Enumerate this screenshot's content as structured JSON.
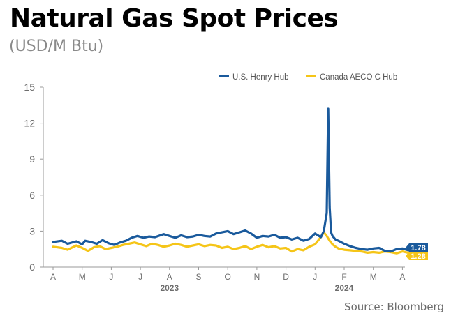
{
  "title": "Natural Gas Spot Prices",
  "subtitle": "(USD/M Btu)",
  "source": "Source: Bloomberg",
  "colors": {
    "henry_hub": "#1a5a9c",
    "aeco": "#f5c518",
    "axis": "#9a9a9a",
    "tick_text": "#6d6d6d"
  },
  "chart_data": {
    "type": "line",
    "title": "Natural Gas Spot Prices",
    "subtitle": "(USD/M Btu)",
    "ylim": [
      0,
      15
    ],
    "yticks": [
      "0",
      "3",
      "6",
      "9",
      "12",
      "15"
    ],
    "grid": false,
    "legend_position": "top-right",
    "x_month_labels": [
      "A",
      "M",
      "J",
      "J",
      "A",
      "S",
      "O",
      "N",
      "D",
      "J",
      "F",
      "M",
      "A"
    ],
    "x_year_labels": [
      {
        "label": "2023",
        "month_index": 4
      },
      {
        "label": "2024",
        "month_index": 10
      }
    ],
    "series": [
      {
        "name": "U.S. Henry Hub",
        "color": "#1a5a9c",
        "last_value_label": "1.78",
        "x_month": [
          0.0,
          0.3,
          0.5,
          0.8,
          1.0,
          1.1,
          1.3,
          1.5,
          1.7,
          1.9,
          2.1,
          2.3,
          2.5,
          2.7,
          2.9,
          3.1,
          3.3,
          3.5,
          3.8,
          4.0,
          4.2,
          4.4,
          4.6,
          4.8,
          5.0,
          5.2,
          5.4,
          5.6,
          5.8,
          6.0,
          6.2,
          6.4,
          6.6,
          6.8,
          7.0,
          7.2,
          7.4,
          7.6,
          7.8,
          8.0,
          8.2,
          8.4,
          8.6,
          8.8,
          9.0,
          9.2,
          9.3,
          9.4,
          9.45,
          9.5,
          9.55,
          9.6,
          9.7,
          9.8,
          10.0,
          10.2,
          10.4,
          10.6,
          10.8,
          11.0,
          11.2,
          11.4,
          11.6,
          11.8,
          12.0,
          12.2,
          12.35,
          12.5
        ],
        "values": [
          2.1,
          2.2,
          1.95,
          2.15,
          1.9,
          2.2,
          2.1,
          1.95,
          2.25,
          2.0,
          1.85,
          2.05,
          2.2,
          2.45,
          2.6,
          2.45,
          2.55,
          2.5,
          2.75,
          2.6,
          2.45,
          2.65,
          2.5,
          2.55,
          2.7,
          2.6,
          2.55,
          2.8,
          2.9,
          3.0,
          2.75,
          2.9,
          3.05,
          2.8,
          2.45,
          2.6,
          2.55,
          2.7,
          2.45,
          2.5,
          2.3,
          2.45,
          2.2,
          2.35,
          2.8,
          2.5,
          3.0,
          4.5,
          13.2,
          5.0,
          2.9,
          2.6,
          2.3,
          2.2,
          1.95,
          1.75,
          1.6,
          1.5,
          1.45,
          1.55,
          1.6,
          1.35,
          1.3,
          1.5,
          1.55,
          1.4,
          1.6,
          1.78
        ]
      },
      {
        "name": "Canada AECO C Hub",
        "color": "#f5c518",
        "last_value_label": "1.28",
        "x_month": [
          0.0,
          0.3,
          0.5,
          0.8,
          1.0,
          1.2,
          1.4,
          1.6,
          1.8,
          2.0,
          2.2,
          2.4,
          2.6,
          2.8,
          3.0,
          3.2,
          3.4,
          3.6,
          3.8,
          4.0,
          4.2,
          4.4,
          4.6,
          4.8,
          5.0,
          5.2,
          5.4,
          5.6,
          5.8,
          6.0,
          6.2,
          6.4,
          6.6,
          6.8,
          7.0,
          7.2,
          7.4,
          7.6,
          7.8,
          8.0,
          8.2,
          8.4,
          8.6,
          8.8,
          9.0,
          9.2,
          9.3,
          9.4,
          9.5,
          9.6,
          9.7,
          9.8,
          10.0,
          10.2,
          10.4,
          10.6,
          10.8,
          11.0,
          11.2,
          11.4,
          11.6,
          11.8,
          12.0,
          12.2,
          12.35,
          12.5
        ],
        "values": [
          1.7,
          1.6,
          1.45,
          1.8,
          1.6,
          1.35,
          1.65,
          1.75,
          1.5,
          1.6,
          1.7,
          1.85,
          1.95,
          2.05,
          1.9,
          1.75,
          1.95,
          1.85,
          1.7,
          1.8,
          1.95,
          1.85,
          1.7,
          1.8,
          1.9,
          1.75,
          1.85,
          1.8,
          1.6,
          1.7,
          1.5,
          1.6,
          1.75,
          1.5,
          1.7,
          1.85,
          1.65,
          1.75,
          1.55,
          1.6,
          1.3,
          1.5,
          1.4,
          1.7,
          1.9,
          2.5,
          2.9,
          2.6,
          2.2,
          1.9,
          1.7,
          1.55,
          1.45,
          1.4,
          1.35,
          1.3,
          1.2,
          1.25,
          1.2,
          1.3,
          1.25,
          1.15,
          1.3,
          1.2,
          1.25,
          1.28
        ]
      }
    ]
  }
}
